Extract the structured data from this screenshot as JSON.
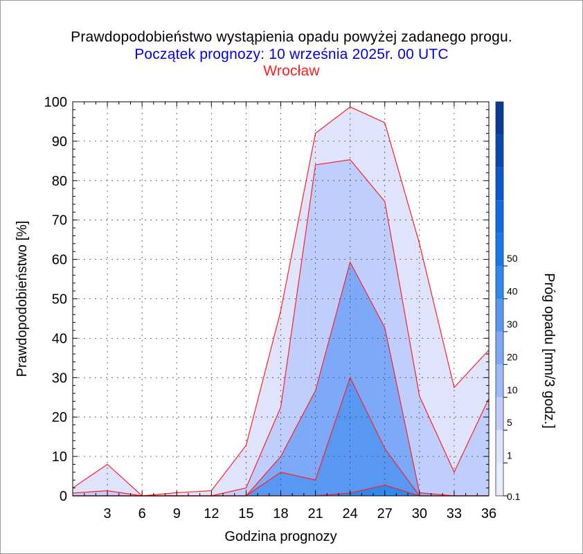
{
  "title": "Prawdopodobieństwo wystąpienia opadu powyżej zadanego progu.",
  "subtitle": "Początek prognozy: 10 września 2025r. 00 UTC",
  "location": "Wrocław",
  "chart_data": {
    "type": "area",
    "title": "Prawdopodobieństwo wystąpienia opadu powyżej zadanego progu.",
    "xlabel": "Godzina prognozy",
    "ylabel": "Prawdopodobieństwo [%]",
    "xlim": [
      0,
      36
    ],
    "ylim": [
      0,
      100
    ],
    "xticks": [
      3,
      6,
      9,
      12,
      15,
      18,
      21,
      24,
      27,
      30,
      33,
      36
    ],
    "yticks": [
      0,
      10,
      20,
      30,
      40,
      50,
      60,
      70,
      80,
      90,
      100
    ],
    "grid": true,
    "x": [
      0,
      3,
      6,
      9,
      12,
      15,
      18,
      21,
      24,
      27,
      30,
      33,
      36
    ],
    "series": [
      {
        "name": "0.1",
        "color": "#dfe3fb",
        "values": [
          2,
          8,
          0,
          0.8,
          1.3,
          12.8,
          47,
          92,
          98.7,
          94.7,
          64,
          27.5,
          37
        ]
      },
      {
        "name": "1",
        "color": "#bfcefc",
        "values": [
          0.7,
          1.3,
          0,
          0,
          0,
          2,
          22.5,
          84,
          85.3,
          74.7,
          25.3,
          6,
          24.7
        ]
      },
      {
        "name": "5",
        "color": "#7ea8f8",
        "values": [
          0,
          0,
          0,
          0,
          0,
          0,
          10,
          26.7,
          59.3,
          42.7,
          0.8,
          0,
          0
        ]
      },
      {
        "name": "10",
        "color": "#5898f2",
        "values": [
          0,
          0,
          0,
          0,
          0,
          0,
          6,
          4,
          30,
          12,
          0,
          0,
          0
        ]
      },
      {
        "name": "20",
        "color": "#2e88ee",
        "values": [
          0,
          0,
          0,
          0,
          0,
          0,
          0,
          0,
          0.7,
          2.7,
          0,
          0,
          0
        ]
      }
    ],
    "colorbar": {
      "label": "Próg opadu [mm/3 godz.]",
      "tick_labels": [
        "0.1",
        "1",
        "5",
        "10",
        "20",
        "30",
        "40",
        "50"
      ],
      "colors": [
        "#e9ecfc",
        "#dfe3fb",
        "#bfcefc",
        "#9dbafa",
        "#7ea8f8",
        "#5898f2",
        "#2e88ee",
        "#1478f0",
        "#0f6ae6",
        "#0a58cf",
        "#0748b3",
        "#063b99"
      ]
    }
  }
}
